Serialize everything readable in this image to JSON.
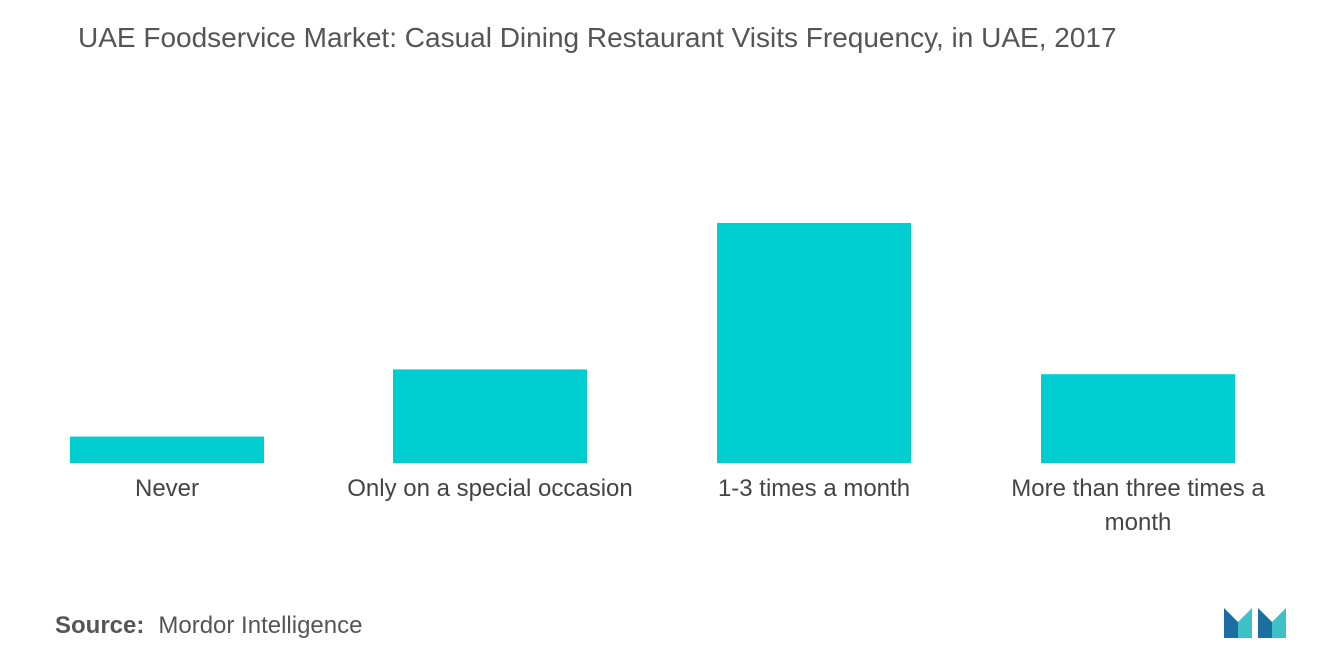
{
  "chart_data": {
    "type": "bar",
    "title": "UAE Foodservice Market: Casual Dining Restaurant Visits Frequency, in UAE, 2017",
    "categories": [
      "Never",
      "Only on a special occasion",
      "1-3 times a month",
      "More than three times a month"
    ],
    "values": [
      11,
      39,
      100,
      37
    ],
    "ylim": [
      0,
      100
    ],
    "grid": false,
    "legend": "none",
    "bar_color": "#00CED1"
  },
  "source": {
    "label": "Source:",
    "value": "Mordor Intelligence"
  },
  "logo": {
    "icon": "mordor-intelligence-logo-icon",
    "colors": [
      "#1b6ea1",
      "#3fc0c7"
    ]
  }
}
